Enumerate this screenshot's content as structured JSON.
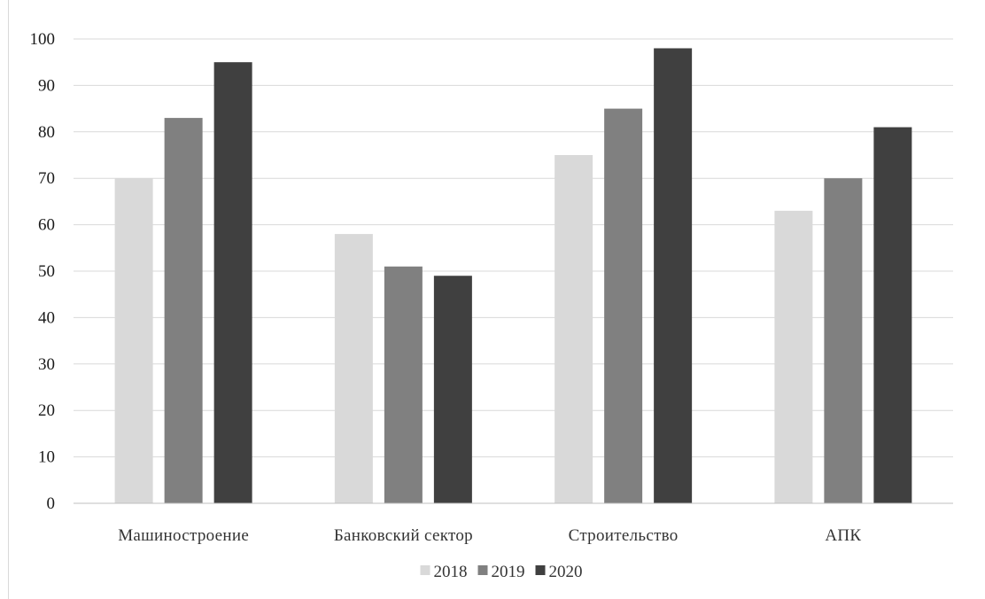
{
  "chart_data": {
    "type": "bar",
    "title": "",
    "xlabel": "",
    "ylabel": "",
    "categories": [
      "Машиностроение",
      "Банковский сектор",
      "Строительство",
      "АПК"
    ],
    "series": [
      {
        "name": "2018",
        "values": [
          70,
          58,
          75,
          63
        ],
        "color": "#d9d9d9"
      },
      {
        "name": "2019",
        "values": [
          83,
          51,
          85,
          70
        ],
        "color": "#808080"
      },
      {
        "name": "2020",
        "values": [
          95,
          49,
          98,
          81
        ],
        "color": "#404040"
      }
    ],
    "ylim": [
      0,
      100
    ],
    "yticks": [
      "0",
      "10",
      "20",
      "30",
      "40",
      "50",
      "60",
      "70",
      "80",
      "90",
      "100"
    ],
    "grid": true,
    "legend_position": "bottom"
  }
}
